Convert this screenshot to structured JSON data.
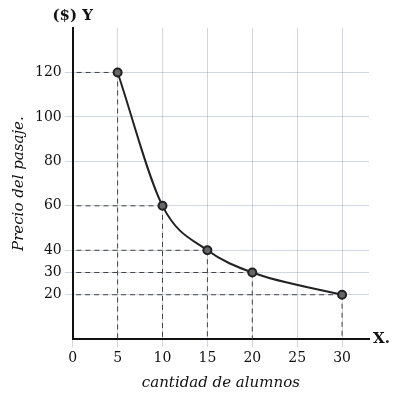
{
  "chart_data": {
    "type": "line",
    "xlabel": "cantidad de alumnos",
    "ylabel": "Precio del pasaje.",
    "annotations": [
      "($) Y",
      "X."
    ],
    "x": [
      5,
      10,
      15,
      20,
      30
    ],
    "values": [
      120,
      60,
      40,
      30,
      20
    ],
    "color": "#222222",
    "marker": "circle",
    "line_style": "solid",
    "xlim": [
      0,
      33
    ],
    "xticks": [
      0,
      5,
      10,
      15,
      20,
      25,
      30
    ],
    "ylim": [
      0,
      140
    ],
    "yticks": [
      20,
      30,
      40,
      60,
      80,
      100,
      120
    ],
    "grid": true
  }
}
